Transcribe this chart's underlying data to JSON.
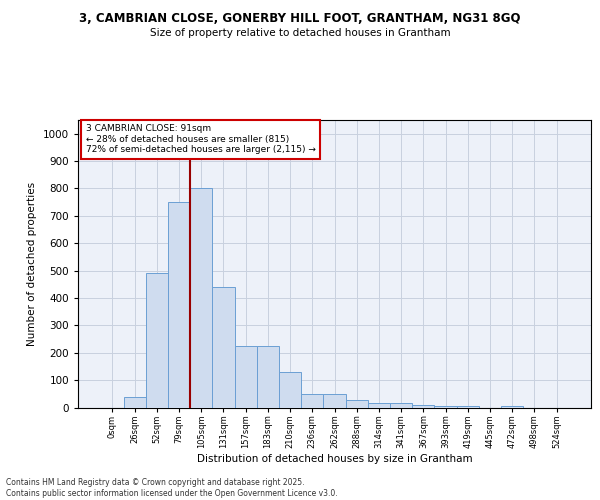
{
  "title_line1": "3, CAMBRIAN CLOSE, GONERBY HILL FOOT, GRANTHAM, NG31 8GQ",
  "title_line2": "Size of property relative to detached houses in Grantham",
  "xlabel": "Distribution of detached houses by size in Grantham",
  "ylabel": "Number of detached properties",
  "bar_labels": [
    "0sqm",
    "26sqm",
    "52sqm",
    "79sqm",
    "105sqm",
    "131sqm",
    "157sqm",
    "183sqm",
    "210sqm",
    "236sqm",
    "262sqm",
    "288sqm",
    "314sqm",
    "341sqm",
    "367sqm",
    "393sqm",
    "419sqm",
    "445sqm",
    "472sqm",
    "498sqm",
    "524sqm"
  ],
  "bar_values": [
    0,
    40,
    490,
    750,
    800,
    440,
    225,
    225,
    130,
    50,
    50,
    26,
    15,
    15,
    10,
    5,
    5,
    0,
    7,
    0,
    0
  ],
  "bar_color": "#cfdcef",
  "bar_edge_color": "#6b9fd4",
  "vline_color": "#990000",
  "ylim": [
    0,
    1050
  ],
  "yticks": [
    0,
    100,
    200,
    300,
    400,
    500,
    600,
    700,
    800,
    900,
    1000
  ],
  "annotation_text": "3 CAMBRIAN CLOSE: 91sqm\n← 28% of detached houses are smaller (815)\n72% of semi-detached houses are larger (2,115) →",
  "annotation_box_color": "#ffffff",
  "annotation_box_edge": "#cc0000",
  "footer_text": "Contains HM Land Registry data © Crown copyright and database right 2025.\nContains public sector information licensed under the Open Government Licence v3.0.",
  "bg_color": "#edf1f9",
  "grid_color": "#c8d0df",
  "fig_bg": "#ffffff"
}
